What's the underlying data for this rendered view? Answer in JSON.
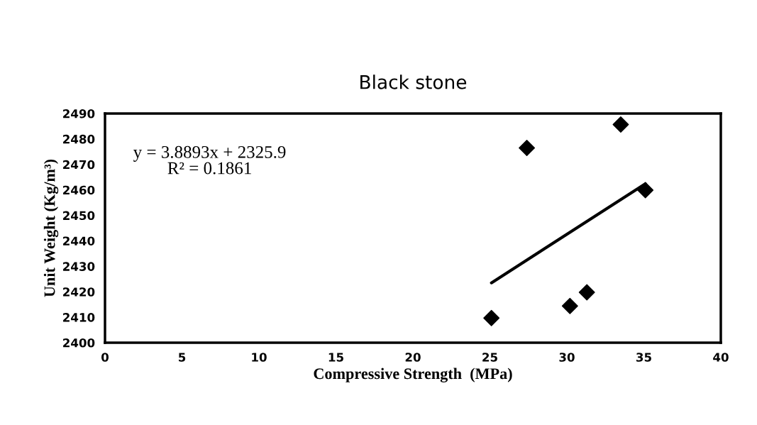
{
  "chart_data": {
    "type": "scatter",
    "title": "Black stone",
    "xlabel": "Compressive Strength  (MPa)",
    "ylabel": "Unit Weight (Kg/m³)",
    "series": [
      {
        "color": "#000000",
        "marker": "diamond",
        "x": [
          25.1,
          27.4,
          30.2,
          31.3,
          33.5,
          35.1
        ],
        "values": [
          2409.7,
          2476.5,
          2414.4,
          2419.8,
          2485.7,
          2459.9
        ]
      },
      {
        "type": "line",
        "color": "#000000",
        "x": [
          25.1,
          35.1
        ],
        "values": [
          2423.5,
          2462.4
        ]
      }
    ],
    "annotations": [
      {
        "text": "y = 3.8893x + 2325.9\nR² = 0.1861"
      }
    ],
    "xlim": [
      0,
      40
    ],
    "xticks": [
      0,
      5,
      10,
      15,
      20,
      25,
      30,
      35,
      40
    ],
    "ylim": [
      2400,
      2490
    ],
    "yticks": [
      2400,
      2410,
      2420,
      2430,
      2440,
      2450,
      2460,
      2470,
      2480,
      2490
    ],
    "grid": false,
    "legend": false
  }
}
